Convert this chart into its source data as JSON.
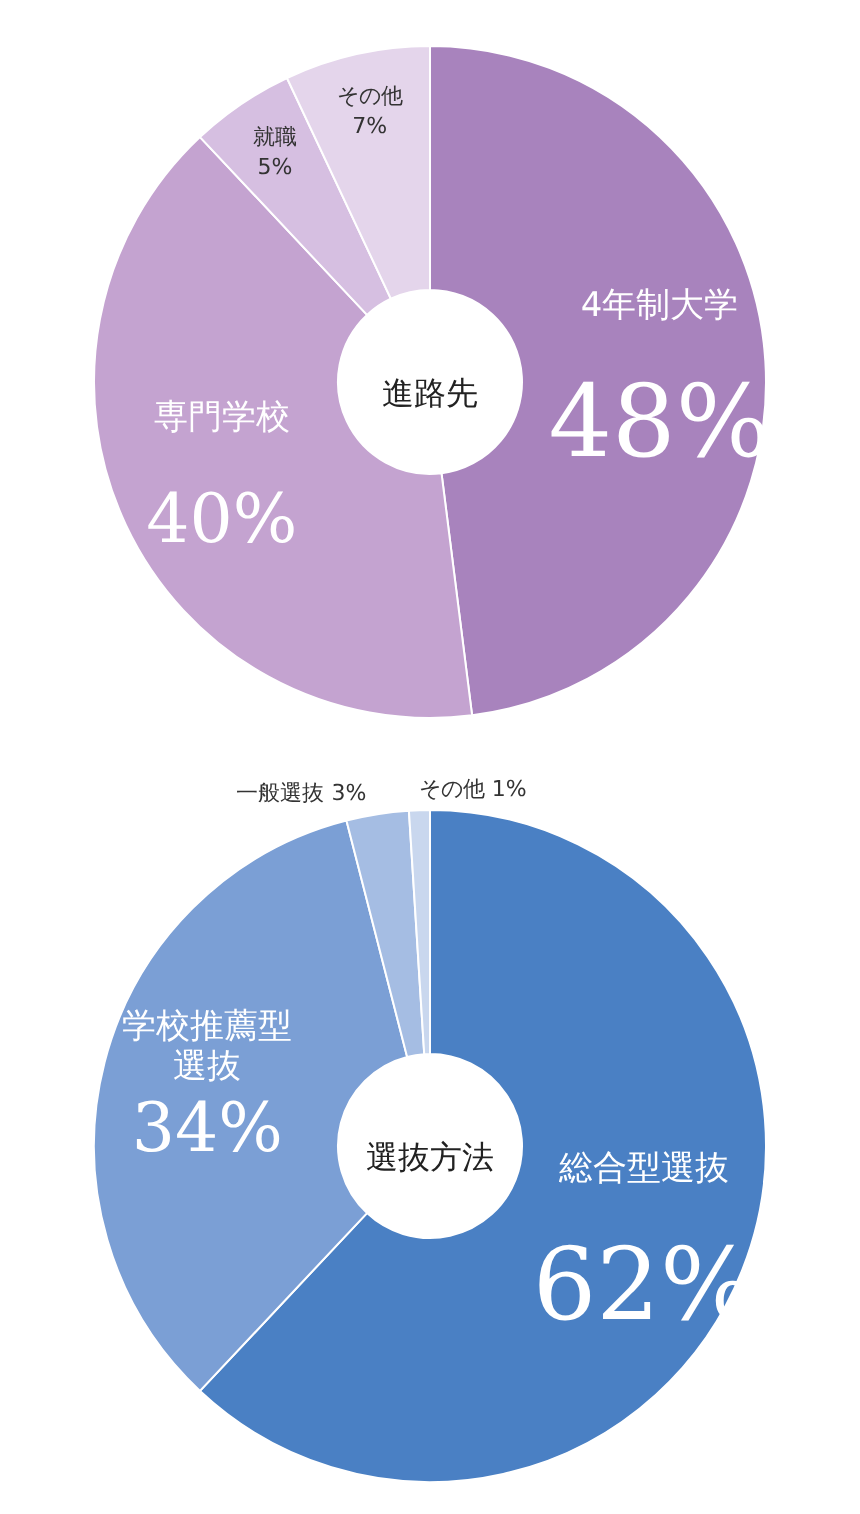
{
  "chart_data": [
    {
      "type": "donut",
      "title": "進路先",
      "categories": [
        "4年制大学",
        "専門学校",
        "就職",
        "その他"
      ],
      "values": [
        48,
        40,
        5,
        7
      ],
      "value_labels": [
        "48%",
        "40%",
        "5%",
        "7%"
      ],
      "colors": [
        "#a883bd",
        "#c4a3d0",
        "#d6bfe1",
        "#e4d5eb"
      ]
    },
    {
      "type": "donut",
      "title": "選抜方法",
      "categories": [
        "総合型選抜",
        "学校推薦型選抜",
        "一般選抜",
        "その他"
      ],
      "values": [
        62,
        34,
        3,
        1
      ],
      "value_labels": [
        "62%",
        "34%",
        "3%",
        "1%"
      ],
      "colors": [
        "#4a80c4",
        "#7b9fd5",
        "#a5bde3",
        "#c9d7ee"
      ]
    }
  ]
}
